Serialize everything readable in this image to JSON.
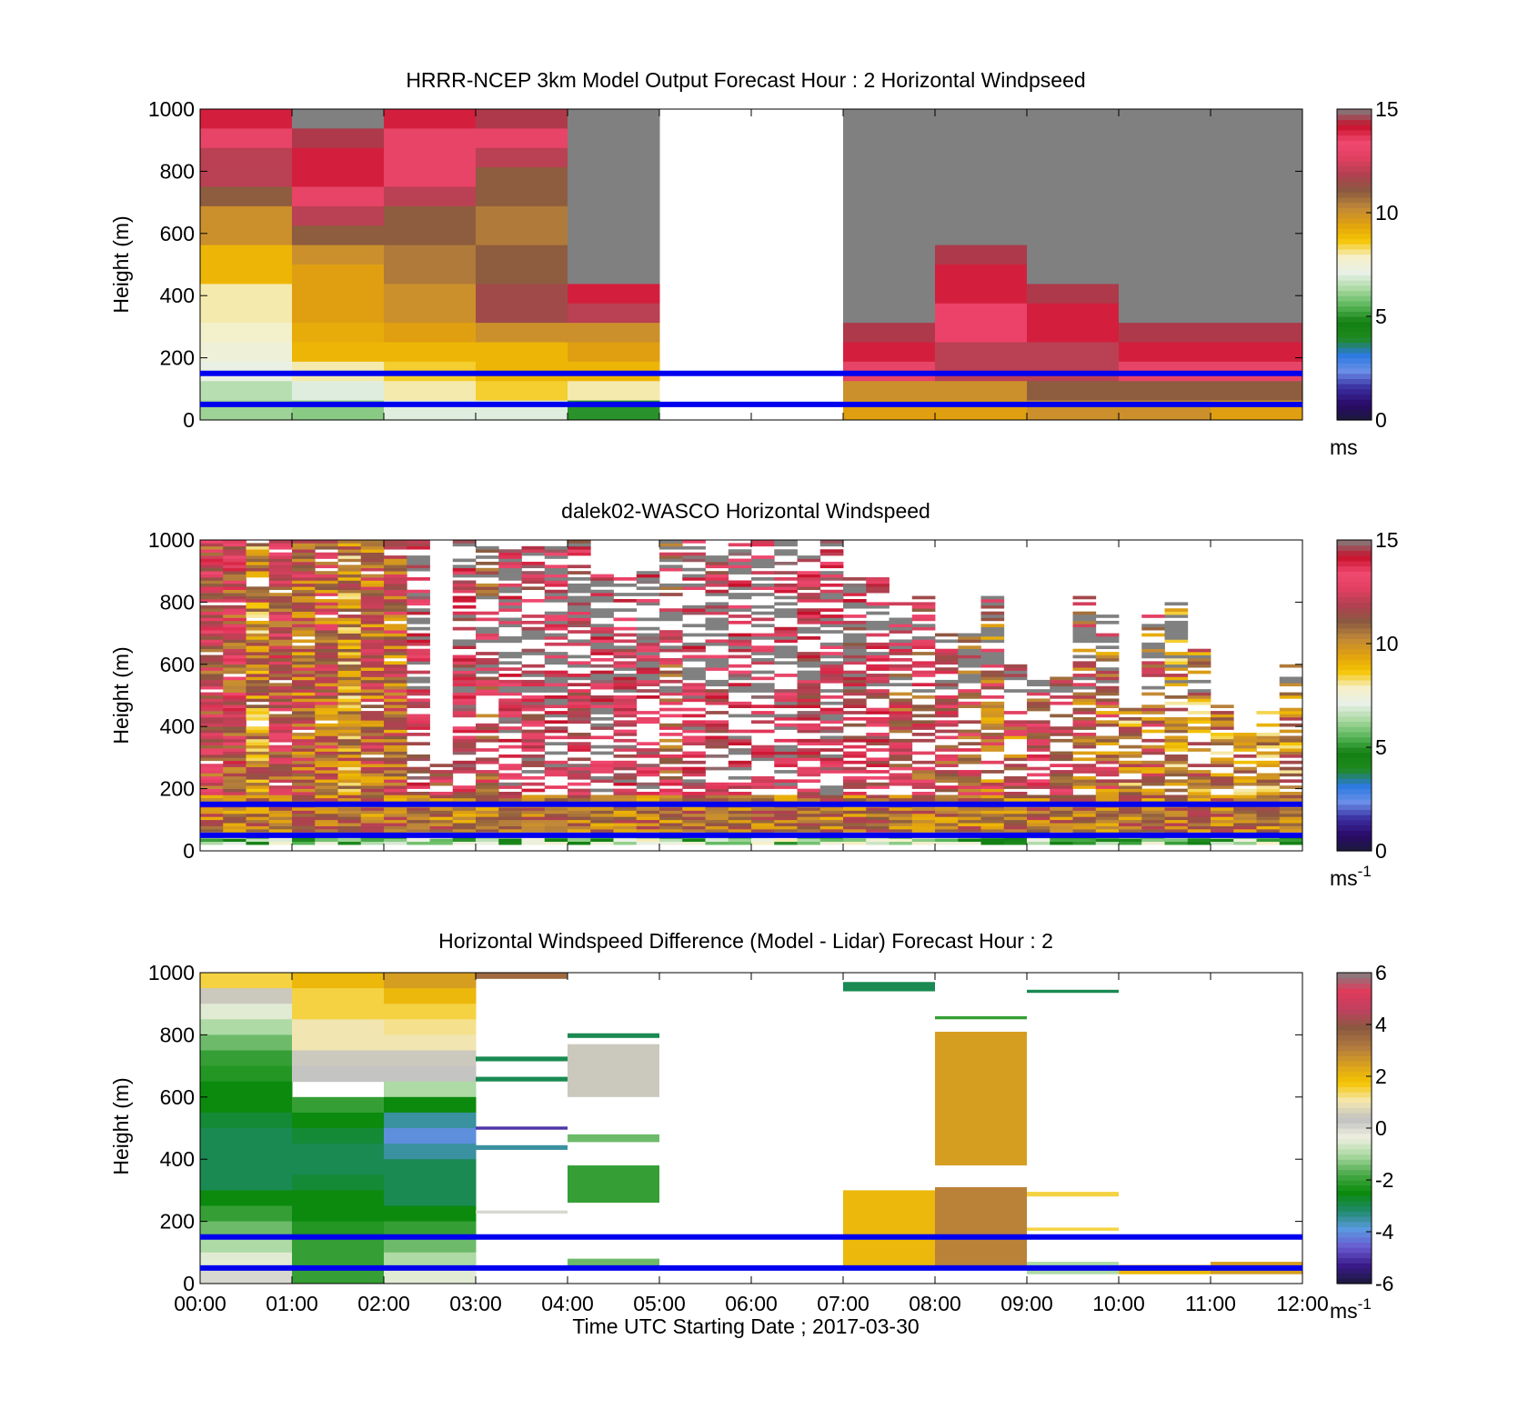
{
  "figure": {
    "xlabel": "Time UTC  Starting Date ; 2017-03-30"
  },
  "colors": {
    "guide_lines": "#0000ee",
    "missing_data": "#808080",
    "windspeed_colormap": [
      "#1a1a3a",
      "#2a0a6a",
      "#3a2fa0",
      "#6a8ee8",
      "#2a7ae0",
      "#1f8a1f",
      "#128012",
      "#5ab65a",
      "#a8d8a0",
      "#e8f0e8",
      "#f5f0c8",
      "#f5c400",
      "#e0a010",
      "#c08838",
      "#8a5a40",
      "#b04050",
      "#e04060",
      "#f04870",
      "#c8102a",
      "#808080"
    ],
    "difference_colormap": [
      "#1a1a3a",
      "#3a1a8a",
      "#6a5ad0",
      "#5a9ae0",
      "#1f8a6a",
      "#0a8a0a",
      "#4aaa4a",
      "#a8d8a0",
      "#f0f0e0",
      "#c0c0c0",
      "#f5e8b0",
      "#f5c400",
      "#d8a020",
      "#b07840",
      "#8a5a40",
      "#c04060",
      "#e03a5a",
      "#808080"
    ]
  },
  "chart_data": [
    {
      "type": "heatmap",
      "title": "HRRR-NCEP 3km Model Output   Forecast Hour : 2 Horizontal Windpseed",
      "ylabel": "Height (m)",
      "x_ticks": [
        "00:00",
        "01:00",
        "02:00",
        "03:00",
        "04:00",
        "05:00",
        "06:00",
        "07:00",
        "08:00",
        "09:00",
        "10:00",
        "11:00",
        "12:00"
      ],
      "show_x_tick_labels": false,
      "y_ticks": [
        0,
        200,
        400,
        600,
        800,
        1000
      ],
      "ylim": [
        0,
        1000
      ],
      "xlim_hours": [
        0,
        12
      ],
      "colorbar": {
        "ticks": [
          0,
          5,
          10,
          15
        ],
        "range": [
          0,
          15
        ],
        "unit": "ms",
        "unit_sup": ""
      },
      "guide_lines_m": [
        50,
        150
      ],
      "columns_hours": [
        0,
        1,
        2,
        3,
        4,
        5,
        6,
        7,
        8,
        9,
        10,
        11
      ],
      "values_m_per_s_top_to_bottom": [
        [
          14,
          13,
          12,
          12,
          11,
          10,
          10,
          9,
          9,
          8,
          8,
          7.8,
          7.5,
          7.2,
          6.5,
          6.2
        ],
        [
          15,
          14.5,
          14,
          14,
          13,
          12,
          11,
          10,
          9.5,
          9.5,
          9.5,
          9.2,
          9,
          8,
          7,
          6
        ],
        [
          14,
          13,
          13,
          13,
          12,
          11,
          11,
          10.5,
          10.5,
          10,
          10,
          9.5,
          9,
          8.5,
          8,
          7
        ],
        [
          14.5,
          13,
          12,
          11,
          11,
          10.5,
          10.5,
          11,
          11,
          11.5,
          11.5,
          10,
          9,
          9,
          8.5,
          7
        ],
        [
          "missing",
          "missing",
          "missing",
          "missing",
          "missing",
          "missing",
          "missing",
          "missing",
          15,
          14,
          12,
          10,
          9.5,
          9,
          8,
          5
        ],
        [
          null,
          null,
          null,
          null,
          null,
          null,
          null,
          null,
          null,
          null,
          null,
          null,
          null,
          null,
          null,
          null
        ],
        [
          null,
          null,
          null,
          null,
          null,
          null,
          null,
          null,
          null,
          null,
          null,
          null,
          null,
          null,
          null,
          null
        ],
        [
          "missing",
          "missing",
          "missing",
          "missing",
          15,
          15,
          15,
          "missing",
          "missing",
          "missing",
          "missing",
          14.5,
          14,
          13,
          10,
          9.5
        ],
        [
          "missing",
          "missing",
          "missing",
          "missing",
          "missing",
          "missing",
          "missing",
          14.5,
          14,
          14,
          13.5,
          13.5,
          12,
          12,
          10,
          9.5
        ],
        [
          "missing",
          "missing",
          "missing",
          "missing",
          "missing",
          "missing",
          "missing",
          "missing",
          "missing",
          14.5,
          14,
          14,
          12,
          12,
          11,
          10
        ],
        [
          "missing",
          "missing",
          "missing",
          "missing",
          "missing",
          "missing",
          "missing",
          "missing",
          "missing",
          "missing",
          "missing",
          14.5,
          14,
          13,
          11,
          10
        ],
        [
          "missing",
          "missing",
          "missing",
          "missing",
          "missing",
          "missing",
          "missing",
          "missing",
          "missing",
          "missing",
          "missing",
          14.5,
          14,
          13,
          11,
          9.5
        ]
      ]
    },
    {
      "type": "heatmap",
      "title": "dalek02-WASCO  Horizontal Windspeed",
      "ylabel": "Height (m)",
      "x_ticks": [
        "00:00",
        "01:00",
        "02:00",
        "03:00",
        "04:00",
        "05:00",
        "06:00",
        "07:00",
        "08:00",
        "09:00",
        "10:00",
        "11:00",
        "12:00"
      ],
      "show_x_tick_labels": false,
      "y_ticks": [
        0,
        200,
        400,
        600,
        800,
        1000
      ],
      "ylim": [
        0,
        1000
      ],
      "xlim_hours": [
        0,
        12
      ],
      "colorbar": {
        "ticks": [
          0,
          5,
          10,
          15
        ],
        "range": [
          0,
          15
        ],
        "unit": "ms",
        "unit_sup": "-1"
      },
      "guide_lines_m": [
        50,
        150
      ],
      "column_width_hours": 0.25,
      "note_per_profile": "high-resolution lidar profiles every 15 min; coverage top (m) per profile",
      "profile_coverage_top_m": [
        1000,
        1000,
        1000,
        1000,
        1000,
        1000,
        1000,
        1000,
        1000,
        1000,
        280,
        1000,
        1000,
        980,
        1000,
        980,
        1000,
        900,
        880,
        900,
        1000,
        1000,
        950,
        1000,
        1000,
        1000,
        950,
        1000,
        880,
        880,
        800,
        820,
        700,
        700,
        820,
        600,
        560,
        560,
        820,
        760,
        460,
        760,
        800,
        660,
        500,
        380,
        460,
        600
      ],
      "profile_median_m_per_s": [
        12,
        12,
        10,
        12,
        11,
        11,
        10,
        11,
        11,
        13,
        12,
        13,
        12,
        14,
        13,
        14,
        13,
        14,
        13,
        14,
        12,
        14,
        13,
        14,
        14,
        14,
        13,
        14,
        13,
        13,
        12,
        12,
        12,
        12,
        11,
        11,
        12,
        12,
        11,
        11,
        10,
        11,
        10,
        10,
        10,
        10,
        10,
        10
      ]
    },
    {
      "type": "heatmap",
      "title": "Horizontal Windspeed Difference (Model - Lidar) Forecast Hour : 2",
      "ylabel": "Height (m)",
      "xlabel": "Time UTC  Starting Date ; 2017-03-30",
      "x_ticks": [
        "00:00",
        "01:00",
        "02:00",
        "03:00",
        "04:00",
        "05:00",
        "06:00",
        "07:00",
        "08:00",
        "09:00",
        "10:00",
        "11:00",
        "12:00"
      ],
      "show_x_tick_labels": true,
      "y_ticks": [
        0,
        200,
        400,
        600,
        800,
        1000
      ],
      "ylim": [
        0,
        1000
      ],
      "xlim_hours": [
        0,
        12
      ],
      "colorbar": {
        "ticks": [
          -6,
          -4,
          -2,
          0,
          2,
          4,
          6
        ],
        "range": [
          -6,
          6
        ],
        "unit": "ms",
        "unit_sup": "-1"
      },
      "guide_lines_m": [
        50,
        150
      ],
      "segments": [
        {
          "hour": 0,
          "from_m": 0,
          "to_m": 1000,
          "profile_top_to_bottom": [
            1.5,
            0.5,
            -0.5,
            -1,
            -1.5,
            -2,
            -2.2,
            -2.5,
            -2.5,
            -2.8,
            -3,
            -3,
            -3,
            -3,
            -2.5,
            -2,
            -1.5,
            -1,
            -0.5,
            0
          ]
        },
        {
          "hour": 1,
          "from_m": 0,
          "to_m": 1000,
          "profile_top_to_bottom": [
            2,
            1.5,
            1.5,
            1,
            1,
            0.5,
            0.3,
            null,
            -2,
            -2.5,
            -2.8,
            -3,
            -3,
            -2.8,
            -2.5,
            -2.5,
            -2.2,
            -2,
            -2,
            -2
          ]
        },
        {
          "hour": 2,
          "from_m": 0,
          "to_m": 1000,
          "profile_top_to_bottom": [
            2.5,
            2,
            1.5,
            1.2,
            1,
            0.5,
            0.3,
            -1,
            -2.5,
            -3.5,
            -4,
            -3.5,
            -3,
            -3,
            -3,
            -2.5,
            -2,
            -1.5,
            -1,
            -0.5
          ]
        },
        {
          "hour": 3,
          "from_m": 980,
          "to_m": 1000,
          "value": 3.5
        },
        {
          "hour": 3,
          "from_m": 715,
          "to_m": 730,
          "value": -3
        },
        {
          "hour": 3,
          "from_m": 650,
          "to_m": 665,
          "value": -3
        },
        {
          "hour": 3,
          "from_m": 495,
          "to_m": 505,
          "value": -5
        },
        {
          "hour": 3,
          "from_m": 430,
          "to_m": 445,
          "value": -3.5
        },
        {
          "hour": 3,
          "from_m": 225,
          "to_m": 235,
          "value": 0
        },
        {
          "hour": 4,
          "from_m": 790,
          "to_m": 805,
          "value": -3
        },
        {
          "hour": 4,
          "from_m": 600,
          "to_m": 770,
          "value": 0.5
        },
        {
          "hour": 4,
          "from_m": 455,
          "to_m": 480,
          "value": -1.5
        },
        {
          "hour": 4,
          "from_m": 260,
          "to_m": 380,
          "value": -2
        },
        {
          "hour": 4,
          "from_m": 50,
          "to_m": 80,
          "value": -1.5
        },
        {
          "hour": 7,
          "from_m": 940,
          "to_m": 970,
          "value": -3
        },
        {
          "hour": 7,
          "from_m": 50,
          "to_m": 300,
          "value": 2
        },
        {
          "hour": 8,
          "from_m": 850,
          "to_m": 860,
          "value": -2
        },
        {
          "hour": 8,
          "from_m": 380,
          "to_m": 810,
          "value": 2.5
        },
        {
          "hour": 8,
          "from_m": 50,
          "to_m": 310,
          "value": 3
        },
        {
          "hour": 9,
          "from_m": 935,
          "to_m": 945,
          "value": -3
        },
        {
          "hour": 9,
          "from_m": 280,
          "to_m": 295,
          "value": 1.5
        },
        {
          "hour": 9,
          "from_m": 170,
          "to_m": 180,
          "value": 1.5
        },
        {
          "hour": 9,
          "from_m": 30,
          "to_m": 70,
          "value": -1
        },
        {
          "hour": 10,
          "from_m": 30,
          "to_m": 60,
          "value": 2
        },
        {
          "hour": 11,
          "from_m": 30,
          "to_m": 70,
          "value": 2.5
        }
      ]
    }
  ]
}
